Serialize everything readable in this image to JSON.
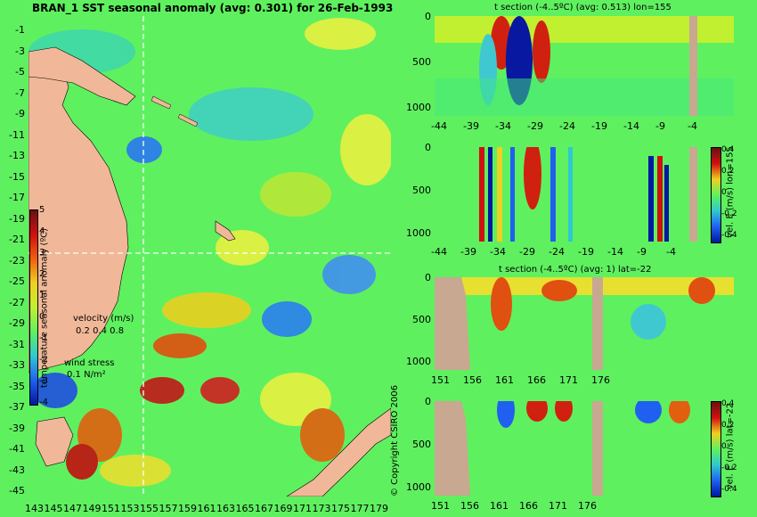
{
  "map": {
    "title": "BRAN_1 SST seasonal anomaly (avg: 0.301) for 26-Feb-1993",
    "lat_labels": [
      "-1",
      "-3",
      "-5",
      "-7",
      "-9",
      "-11",
      "-13",
      "-15",
      "-17",
      "-19",
      "-21",
      "-23",
      "-25",
      "-27",
      "-29",
      "-31",
      "-33",
      "-35",
      "-37",
      "-39",
      "-41",
      "-43",
      "-45"
    ],
    "lon_labels": [
      "143",
      "145",
      "147",
      "149",
      "151",
      "153",
      "155",
      "157",
      "159",
      "161",
      "163",
      "165",
      "167",
      "169",
      "171",
      "173",
      "175",
      "177",
      "179"
    ],
    "colorbar": {
      "ticks": [
        "5",
        "4",
        "3",
        "2",
        "1",
        "0",
        "-1",
        "-2",
        "-3",
        "-4"
      ],
      "label": "temperature seasonal anomaly (ºC)"
    },
    "velocity_legend": {
      "title": "velocity (m/s)",
      "scale": "0.2 0.4 0.8"
    },
    "wind_legend": {
      "title": "wind stress",
      "scale": "0.1 N/m²"
    },
    "copyright": "© Copyright CSIRO 2006",
    "colors": {
      "ocean": "#5ff060",
      "land": "#f0b898",
      "warm": "#d01010",
      "cool": "#2060f0",
      "crosshair": "#ffffff"
    }
  },
  "sections": [
    {
      "title": "t section (-4..5ºC) (avg: 0.513) lon=155",
      "y_ticks": [
        "0",
        "500",
        "1000"
      ],
      "x_ticks": [
        "-44",
        "-39",
        "-34",
        "-29",
        "-24",
        "-19",
        "-14",
        "-9",
        "-4"
      ]
    },
    {
      "title": "",
      "y_ticks": [
        "0",
        "500",
        "1000"
      ],
      "x_ticks": [
        "-44",
        "-39",
        "-34",
        "-29",
        "-24",
        "-19",
        "-14",
        "-9",
        "-4"
      ],
      "colorbar_ticks": [
        "0.4",
        "0.2",
        "0",
        "-0.2",
        "-0.4"
      ],
      "colorbar_label": "vel. E (m/s) lon=155"
    },
    {
      "title": "t section (-4..5ºC) (avg: 1) lat=-22",
      "y_ticks": [
        "0",
        "500",
        "1000"
      ],
      "x_ticks": [
        "151",
        "156",
        "161",
        "166",
        "171",
        "176"
      ]
    },
    {
      "title": "",
      "y_ticks": [
        "0",
        "500",
        "1000"
      ],
      "x_ticks": [
        "151",
        "156",
        "161",
        "166",
        "171",
        "176"
      ],
      "colorbar_ticks": [
        "0.4",
        "0.2",
        "0",
        "-0.2",
        "-0.4"
      ],
      "colorbar_label": "vel. E (m/s) lat=-22"
    }
  ]
}
